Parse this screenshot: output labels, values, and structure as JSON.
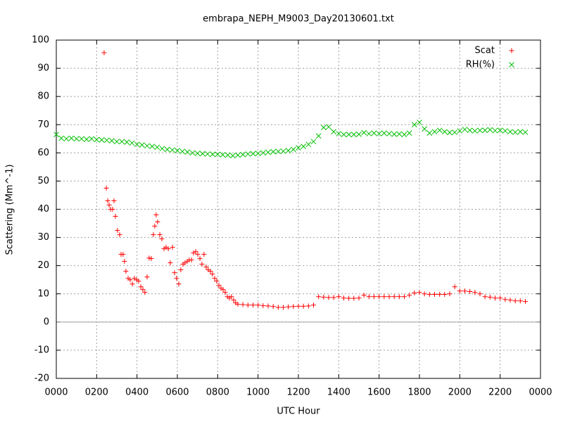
{
  "chart_data": {
    "type": "scatter",
    "title": "embrapa_NEPH_M9003_Day20130601.txt",
    "xlabel": "UTC Hour",
    "ylabel": "Scattering (Mm^-1)",
    "xlim": [
      0,
      24
    ],
    "ylim": [
      -20,
      100
    ],
    "xticks": [
      {
        "value": 0,
        "label": "0000"
      },
      {
        "value": 2,
        "label": "0200"
      },
      {
        "value": 4,
        "label": "0400"
      },
      {
        "value": 6,
        "label": "0600"
      },
      {
        "value": 8,
        "label": "0800"
      },
      {
        "value": 10,
        "label": "1000"
      },
      {
        "value": 12,
        "label": "1200"
      },
      {
        "value": 14,
        "label": "1400"
      },
      {
        "value": 16,
        "label": "1600"
      },
      {
        "value": 18,
        "label": "1800"
      },
      {
        "value": 20,
        "label": "2000"
      },
      {
        "value": 22,
        "label": "2200"
      },
      {
        "value": 24,
        "label": "0000"
      }
    ],
    "yticks": [
      -20,
      -10,
      0,
      10,
      20,
      30,
      40,
      50,
      60,
      70,
      80,
      90,
      100
    ],
    "grid": true,
    "legend": "top-right",
    "series": [
      {
        "name": "Scat",
        "color": "#ff0000",
        "marker": "plus",
        "x": [
          2.37,
          2.48,
          2.55,
          2.62,
          2.69,
          2.79,
          2.86,
          2.93,
          3.03,
          3.14,
          3.21,
          3.31,
          3.38,
          3.45,
          3.56,
          3.66,
          3.77,
          3.87,
          3.98,
          4.08,
          4.19,
          4.29,
          4.39,
          4.5,
          4.6,
          4.71,
          4.81,
          4.88,
          4.95,
          5.02,
          5.13,
          5.23,
          5.34,
          5.44,
          5.55,
          5.65,
          5.76,
          5.86,
          5.96,
          6.07,
          6.17,
          6.28,
          6.38,
          6.49,
          6.59,
          6.7,
          6.8,
          6.91,
          7.01,
          7.12,
          7.22,
          7.32,
          7.43,
          7.53,
          7.64,
          7.74,
          7.85,
          7.95,
          8.06,
          8.16,
          8.27,
          8.37,
          8.48,
          8.58,
          8.68,
          8.79,
          8.89,
          9.0,
          9.25,
          9.5,
          9.75,
          10,
          10.25,
          10.5,
          10.75,
          11,
          11.25,
          11.5,
          11.75,
          12,
          12.25,
          12.5,
          12.75,
          13,
          13.25,
          13.5,
          13.75,
          14,
          14.25,
          14.5,
          14.75,
          15,
          15.25,
          15.5,
          15.75,
          16,
          16.25,
          16.5,
          16.75,
          17,
          17.25,
          17.5,
          17.75,
          18,
          18.25,
          18.5,
          18.75,
          19,
          19.25,
          19.5,
          19.75,
          20,
          20.25,
          20.5,
          20.75,
          21,
          21.25,
          21.5,
          21.75,
          22,
          22.25,
          22.5,
          22.75,
          23,
          23.25
        ],
        "values": [
          95.5,
          47.5,
          43,
          41.5,
          40,
          40,
          43,
          37.5,
          32.5,
          31,
          24,
          24,
          21.5,
          18,
          15.5,
          15,
          13.5,
          15.5,
          15,
          14.5,
          12.5,
          11.5,
          10.5,
          16,
          22.7,
          22.5,
          31,
          34,
          38,
          35.5,
          31,
          29.5,
          26,
          26.5,
          26,
          21,
          26.5,
          17.5,
          15.5,
          13.5,
          18.5,
          20.5,
          21,
          21.5,
          22,
          22,
          24.5,
          25,
          24,
          22.5,
          20.5,
          24,
          19.5,
          18.5,
          18,
          17,
          15.5,
          14.5,
          13,
          12,
          11.5,
          10.5,
          9,
          8.5,
          9,
          7.8,
          6.8,
          6.3,
          6.2,
          6,
          6,
          6,
          5.8,
          5.7,
          5.5,
          5.2,
          5.2,
          5.4,
          5.5,
          5.6,
          5.6,
          5.7,
          6,
          9,
          8.8,
          8.7,
          8.7,
          9,
          8.5,
          8.4,
          8.4,
          8.5,
          9.5,
          9,
          9,
          9,
          9,
          9,
          9,
          9,
          9,
          9.5,
          10.3,
          10.5,
          10,
          9.8,
          9.8,
          9.8,
          9.8,
          10,
          12.5,
          11,
          11,
          10.8,
          10.5,
          10,
          9,
          8.8,
          8.5,
          8.5,
          8,
          7.8,
          7.5,
          7.5,
          7.3
        ]
      },
      {
        "name": "RH(%)",
        "color": "#00c000",
        "marker": "cross",
        "x": [
          0,
          0.25,
          0.5,
          0.75,
          1,
          1.25,
          1.5,
          1.75,
          2,
          2.25,
          2.5,
          2.75,
          3,
          3.25,
          3.5,
          3.75,
          4,
          4.25,
          4.5,
          4.75,
          5,
          5.25,
          5.5,
          5.75,
          6,
          6.25,
          6.5,
          6.75,
          7,
          7.25,
          7.5,
          7.75,
          8,
          8.25,
          8.5,
          8.75,
          9,
          9.25,
          9.5,
          9.75,
          10,
          10.25,
          10.5,
          10.75,
          11,
          11.25,
          11.5,
          11.75,
          12,
          12.25,
          12.5,
          12.75,
          13,
          13.25,
          13.5,
          13.75,
          14,
          14.25,
          14.5,
          14.75,
          15,
          15.25,
          15.5,
          15.75,
          16,
          16.25,
          16.5,
          16.75,
          17,
          17.25,
          17.5,
          17.75,
          18,
          18.25,
          18.5,
          18.75,
          19,
          19.25,
          19.5,
          19.75,
          20,
          20.25,
          20.5,
          20.75,
          21,
          21.25,
          21.5,
          21.75,
          22,
          22.25,
          22.5,
          22.75,
          23,
          23.25
        ],
        "values": [
          66.5,
          65.2,
          65,
          65.2,
          65,
          65,
          64.8,
          65,
          64.7,
          64.6,
          64.5,
          64.3,
          64,
          64,
          63.8,
          63.5,
          63,
          62.8,
          62.5,
          62.3,
          62,
          61.5,
          61.2,
          61,
          60.8,
          60.5,
          60.3,
          60,
          59.8,
          59.7,
          59.6,
          59.5,
          59.5,
          59.3,
          59.2,
          59,
          59.2,
          59.4,
          59.6,
          59.7,
          59.8,
          60,
          60.2,
          60.4,
          60.5,
          60.6,
          60.8,
          61.2,
          61.8,
          62.3,
          63,
          64,
          66,
          69,
          69.2,
          67.5,
          66.8,
          66.5,
          66.5,
          66.5,
          66.6,
          67.2,
          66.8,
          67,
          66.8,
          67,
          66.8,
          66.6,
          66.7,
          66.5,
          67,
          70,
          70.8,
          68.5,
          67,
          67.5,
          68,
          67.5,
          67.2,
          67.3,
          67.8,
          68.3,
          68,
          67.8,
          68,
          68,
          68.2,
          67.9,
          68,
          67.8,
          67.5,
          67.3,
          67.5,
          67.3
        ]
      }
    ]
  }
}
